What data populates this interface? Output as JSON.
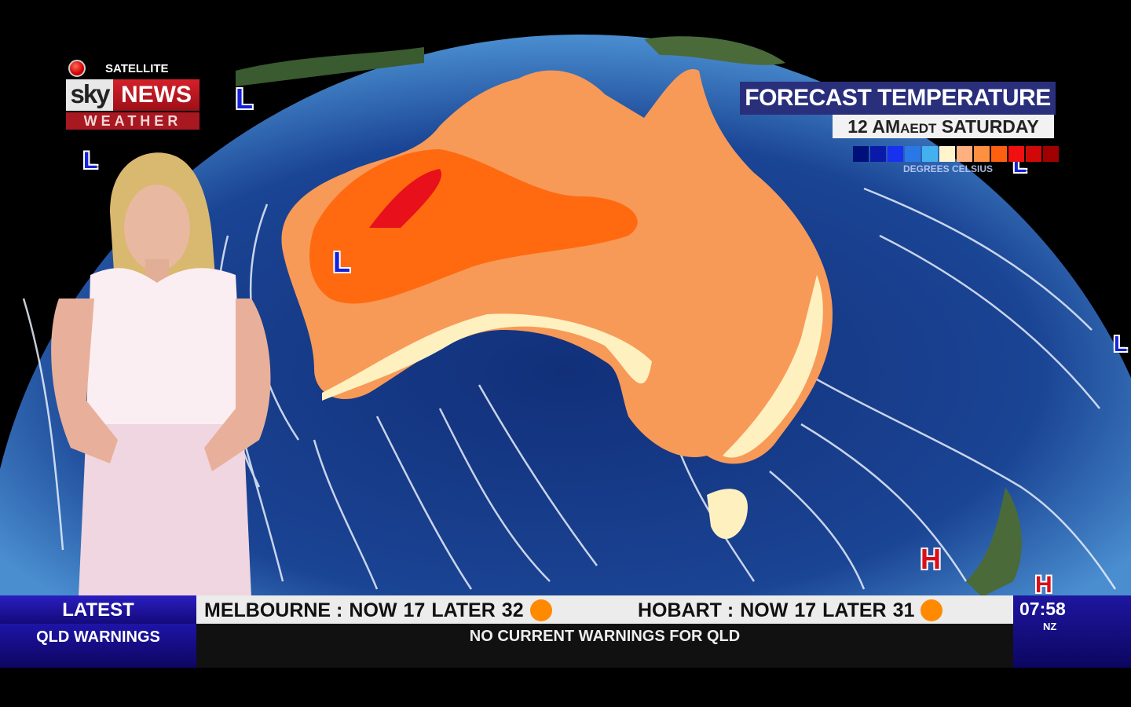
{
  "branding": {
    "live_source": "SATELLITE",
    "logo_sky": "sky",
    "logo_news": "NEWS",
    "logo_weather": "WEATHER"
  },
  "forecast": {
    "title": "FORECAST TEMPERATURE",
    "time": "12 AM",
    "timezone": "AEDT",
    "day": "SATURDAY",
    "scale_label": "DEGREES CELSIUS",
    "scale_colors": [
      "#00107a",
      "#0a1aa8",
      "#1830f0",
      "#2a78e8",
      "#44b0f0",
      "#fff4cc",
      "#ffb080",
      "#ff9040",
      "#ff6010",
      "#f01010",
      "#d00808",
      "#a00000"
    ]
  },
  "pressure_systems": [
    {
      "type": "L"
    },
    {
      "type": "L"
    },
    {
      "type": "L"
    },
    {
      "type": "L"
    },
    {
      "type": "L"
    },
    {
      "type": "H"
    },
    {
      "type": "H"
    }
  ],
  "ticker": {
    "latest_label": "LATEST",
    "section_label": "QLD WARNINGS",
    "cities": [
      {
        "name": "MELBOURNE :",
        "now_label": "NOW",
        "now": "17",
        "later_label": "LATER",
        "later": "32",
        "icon": "sun-icon"
      },
      {
        "name": "HOBART :",
        "now_label": "NOW",
        "now": "17",
        "later_label": "LATER",
        "later": "31",
        "icon": "sun-icon"
      }
    ],
    "warning_text": "NO CURRENT WARNINGS FOR QLD",
    "clock": "07:58",
    "clock_zone": "NZ"
  }
}
